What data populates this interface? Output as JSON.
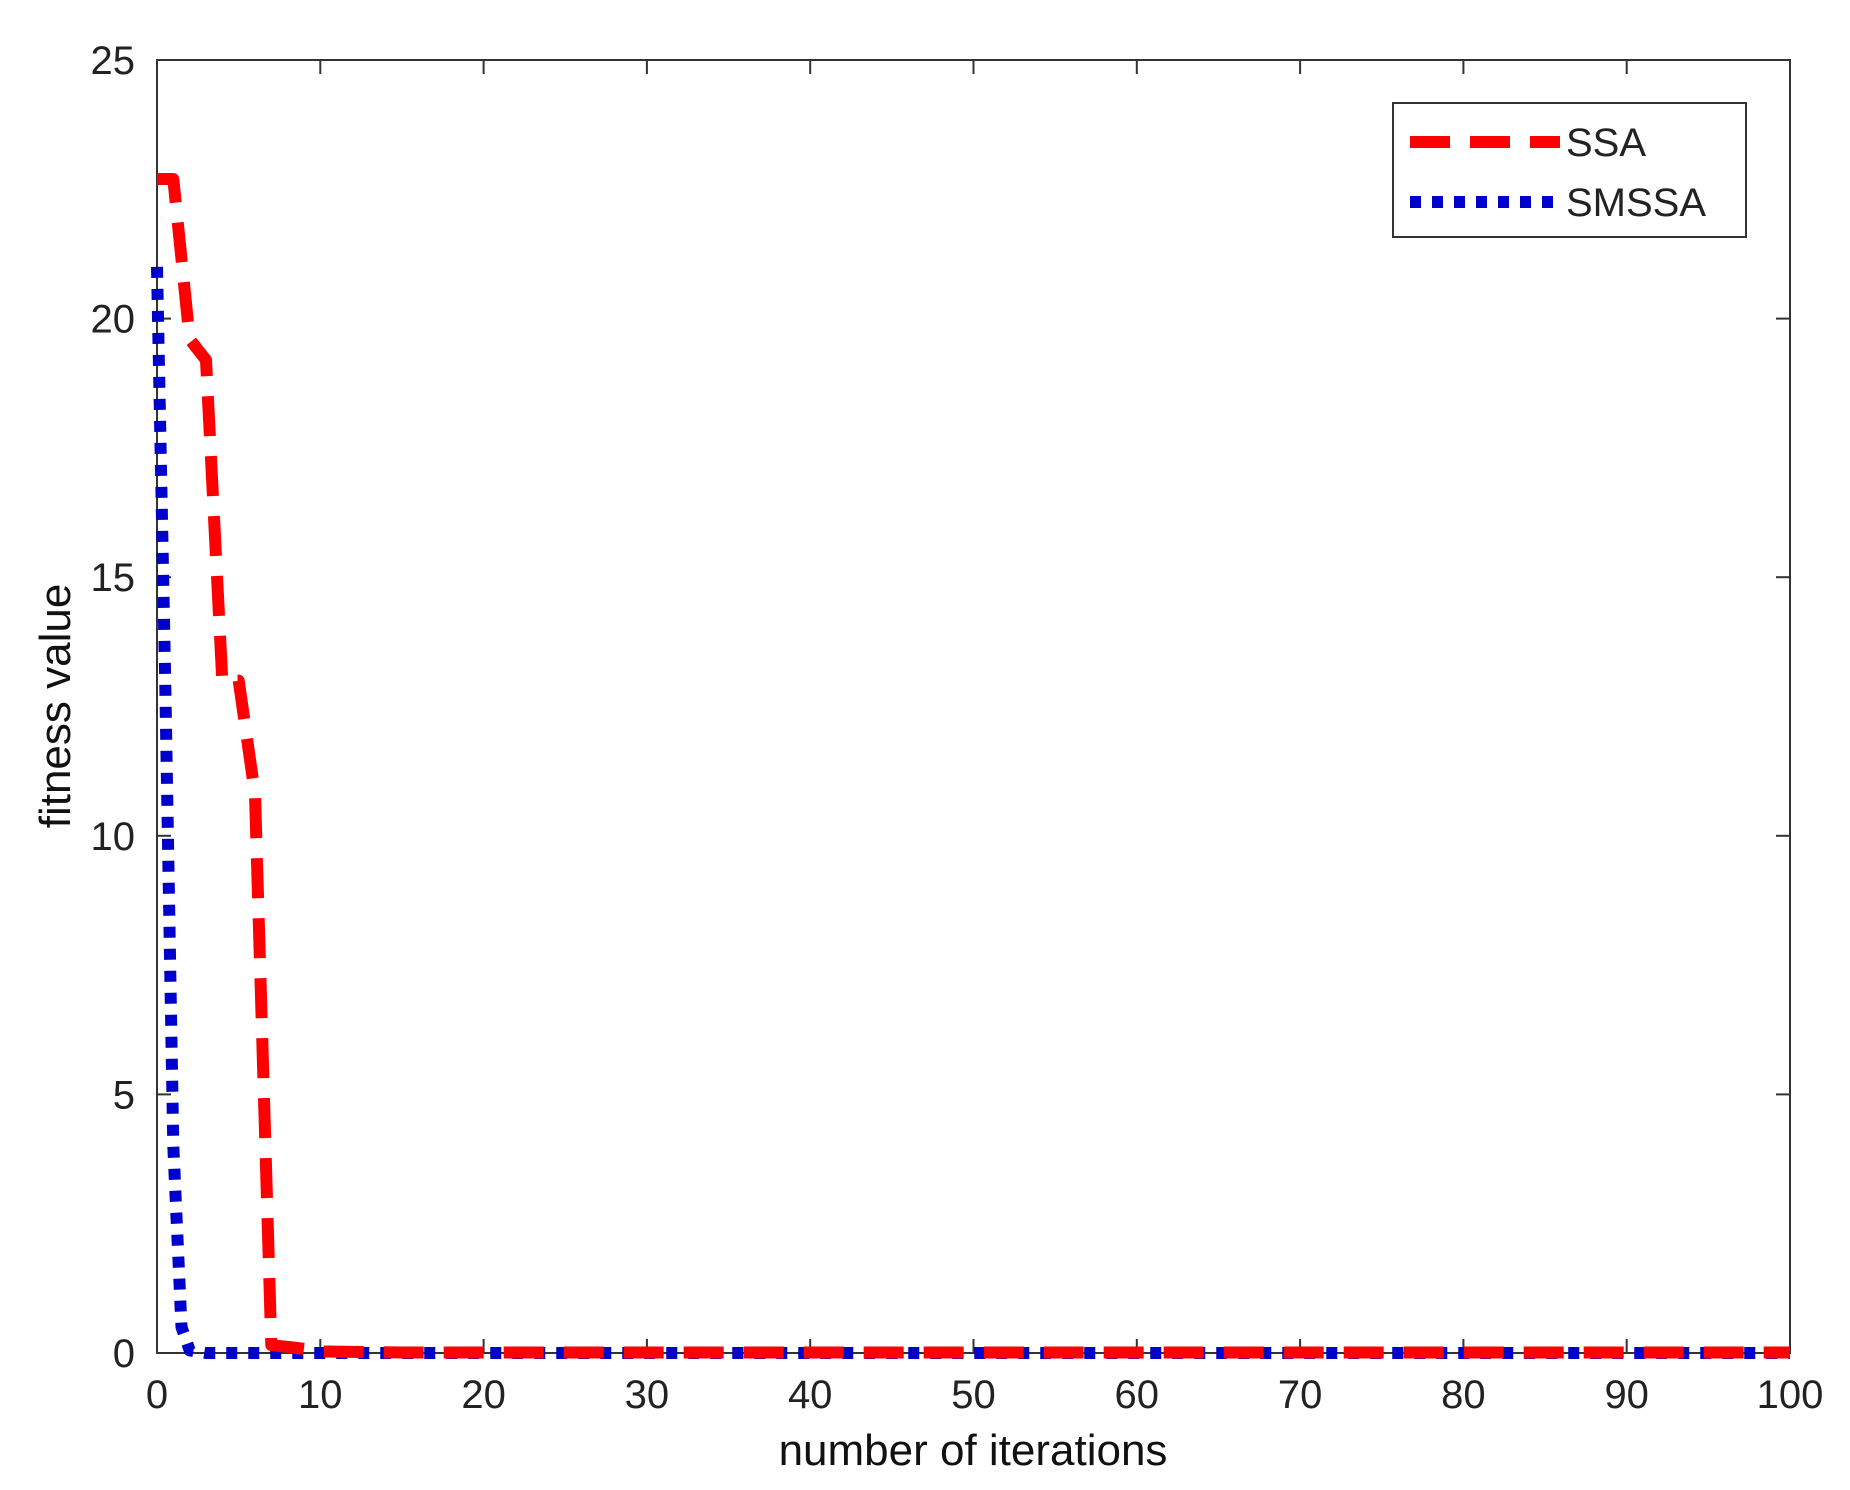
{
  "chart_data": {
    "type": "line",
    "xlabel": "number of iterations",
    "ylabel": "fitness value",
    "xlim": [
      0,
      100
    ],
    "ylim": [
      0,
      25
    ],
    "xticks": [
      0,
      10,
      20,
      30,
      40,
      50,
      60,
      70,
      80,
      90,
      100
    ],
    "yticks": [
      0,
      5,
      10,
      15,
      20,
      25
    ],
    "grid": false,
    "legend": "top-right",
    "series": [
      {
        "name": "SSA",
        "color": "#ff0000",
        "style": "dashed",
        "x": [
          0,
          1,
          2,
          3,
          4,
          5,
          6,
          7,
          8,
          9,
          10,
          15,
          20,
          30,
          40,
          50,
          60,
          70,
          80,
          90,
          100
        ],
        "y": [
          22.7,
          22.7,
          19.6,
          19.2,
          13.0,
          13.0,
          10.8,
          0.15,
          0.12,
          0.08,
          0.03,
          0.01,
          0.01,
          0.01,
          0.01,
          0.01,
          0.01,
          0.01,
          0.01,
          0.01,
          0.01
        ]
      },
      {
        "name": "SMSSA",
        "color": "#0000cc",
        "style": "dotted",
        "x": [
          0,
          0.5,
          1,
          1.5,
          2,
          3,
          10,
          20,
          30,
          40,
          50,
          60,
          70,
          80,
          90,
          100
        ],
        "y": [
          21.0,
          13.0,
          4.0,
          0.5,
          0.05,
          0.0,
          0.0,
          0.0,
          0.0,
          0.0,
          0.0,
          0.0,
          0.0,
          0.0,
          0.0,
          0.0
        ]
      }
    ]
  }
}
